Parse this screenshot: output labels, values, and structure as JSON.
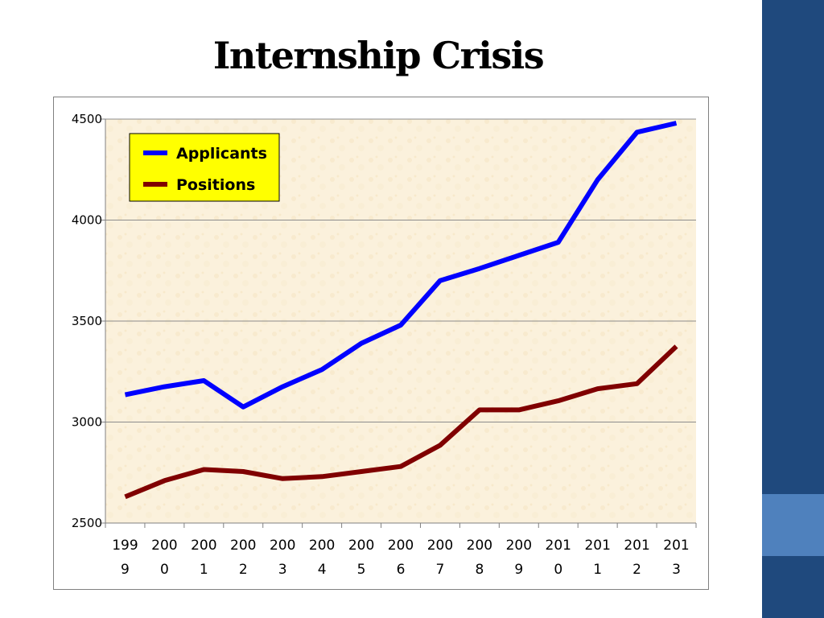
{
  "slide": {
    "title": "Internship Crisis",
    "colors": {
      "sidebar": "#1f497d",
      "sidebar_accent": "#4f81bd"
    }
  },
  "chart_data": {
    "type": "line",
    "title": "",
    "xlabel": "",
    "ylabel": "",
    "categories": [
      "1999",
      "2000",
      "2001",
      "2002",
      "2003",
      "2004",
      "2005",
      "2006",
      "2007",
      "2008",
      "2009",
      "2010",
      "2011",
      "2012",
      "2013"
    ],
    "category_label_lines": [
      [
        "199",
        "9"
      ],
      [
        "200",
        "0"
      ],
      [
        "200",
        "1"
      ],
      [
        "200",
        "2"
      ],
      [
        "200",
        "3"
      ],
      [
        "200",
        "4"
      ],
      [
        "200",
        "5"
      ],
      [
        "200",
        "6"
      ],
      [
        "200",
        "7"
      ],
      [
        "200",
        "8"
      ],
      [
        "200",
        "9"
      ],
      [
        "201",
        "0"
      ],
      [
        "201",
        "1"
      ],
      [
        "201",
        "2"
      ],
      [
        "201",
        "3"
      ]
    ],
    "ylim": [
      2500,
      4500
    ],
    "yticks": [
      2500,
      3000,
      3500,
      4000,
      4500
    ],
    "ytick_labels": [
      "2500",
      "3000",
      "3500",
      "4000",
      "4500"
    ],
    "grid": true,
    "legend_position": "top-left",
    "plot_background": "#fbf1dc",
    "legend_background": "#ffff00",
    "series": [
      {
        "name": "Applicants",
        "color": "#0000ff",
        "values": [
          3135,
          3175,
          3205,
          3075,
          3175,
          3260,
          3390,
          3480,
          3700,
          3760,
          3825,
          3890,
          4200,
          4435,
          4480
        ]
      },
      {
        "name": "Positions",
        "color": "#800000",
        "values": [
          2630,
          2710,
          2765,
          2755,
          2720,
          2730,
          2755,
          2780,
          2885,
          3060,
          3060,
          3105,
          3165,
          3190,
          3375
        ]
      }
    ]
  }
}
